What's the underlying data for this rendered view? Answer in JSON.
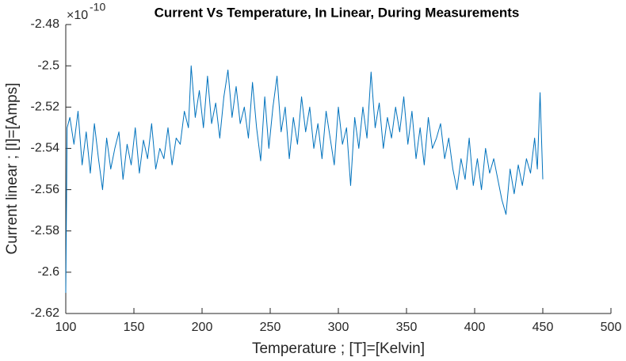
{
  "chart_data": {
    "type": "line",
    "title": "Current Vs Temperature, In Linear, During Measurements",
    "x_label": "Temperature ; [T]=[Kelvin]",
    "y_label": "Current linear ; [I]=[Amps]",
    "y_multiplier_base": "×10",
    "y_multiplier_exponent": "-10",
    "color": "#0072bd",
    "xlim": [
      100,
      500
    ],
    "xticks": [
      100,
      150,
      200,
      250,
      300,
      350,
      400,
      450,
      500
    ],
    "ylim": [
      -2.62,
      -2.48
    ],
    "yticks": [
      -2.62,
      -2.6,
      -2.58,
      -2.56,
      -2.54,
      -2.52,
      -2.5,
      -2.48
    ],
    "x": [
      100,
      101,
      103,
      106,
      109,
      112,
      115,
      118,
      121,
      124,
      127,
      130,
      133,
      136,
      139,
      142,
      145,
      148,
      151,
      154,
      157,
      160,
      163,
      166,
      169,
      172,
      175,
      178,
      181,
      184,
      187,
      190,
      192,
      195,
      198,
      201,
      204,
      207,
      210,
      213,
      216,
      219,
      222,
      225,
      228,
      231,
      234,
      237,
      240,
      243,
      246,
      249,
      252,
      255,
      258,
      261,
      264,
      267,
      270,
      273,
      276,
      279,
      282,
      285,
      288,
      291,
      294,
      297,
      300,
      303,
      306,
      309,
      312,
      315,
      318,
      321,
      324,
      327,
      330,
      333,
      336,
      339,
      342,
      345,
      348,
      351,
      354,
      357,
      360,
      363,
      366,
      369,
      372,
      375,
      378,
      381,
      384,
      387,
      390,
      393,
      396,
      399,
      402,
      405,
      408,
      411,
      414,
      417,
      420,
      423,
      426,
      429,
      432,
      435,
      438,
      441,
      444,
      446,
      448,
      450
    ],
    "values": [
      -2.61,
      -2.53,
      -2.525,
      -2.538,
      -2.522,
      -2.548,
      -2.532,
      -2.552,
      -2.528,
      -2.545,
      -2.56,
      -2.535,
      -2.55,
      -2.54,
      -2.532,
      -2.555,
      -2.538,
      -2.548,
      -2.53,
      -2.552,
      -2.536,
      -2.545,
      -2.528,
      -2.55,
      -2.54,
      -2.545,
      -2.53,
      -2.548,
      -2.535,
      -2.538,
      -2.522,
      -2.53,
      -2.5,
      -2.525,
      -2.512,
      -2.53,
      -2.505,
      -2.528,
      -2.518,
      -2.535,
      -2.515,
      -2.502,
      -2.525,
      -2.51,
      -2.528,
      -2.52,
      -2.535,
      -2.508,
      -2.53,
      -2.546,
      -2.515,
      -2.54,
      -2.52,
      -2.505,
      -2.532,
      -2.52,
      -2.545,
      -2.525,
      -2.538,
      -2.515,
      -2.532,
      -2.52,
      -2.54,
      -2.528,
      -2.545,
      -2.522,
      -2.535,
      -2.548,
      -2.52,
      -2.538,
      -2.53,
      -2.558,
      -2.525,
      -2.54,
      -2.52,
      -2.535,
      -2.503,
      -2.53,
      -2.518,
      -2.54,
      -2.525,
      -2.535,
      -2.52,
      -2.532,
      -2.515,
      -2.538,
      -2.522,
      -2.545,
      -2.53,
      -2.548,
      -2.525,
      -2.54,
      -2.535,
      -2.528,
      -2.545,
      -2.535,
      -2.55,
      -2.56,
      -2.545,
      -2.555,
      -2.535,
      -2.558,
      -2.545,
      -2.56,
      -2.54,
      -2.552,
      -2.545,
      -2.555,
      -2.565,
      -2.572,
      -2.55,
      -2.562,
      -2.548,
      -2.558,
      -2.545,
      -2.552,
      -2.535,
      -2.55,
      -2.513,
      -2.555
    ]
  }
}
